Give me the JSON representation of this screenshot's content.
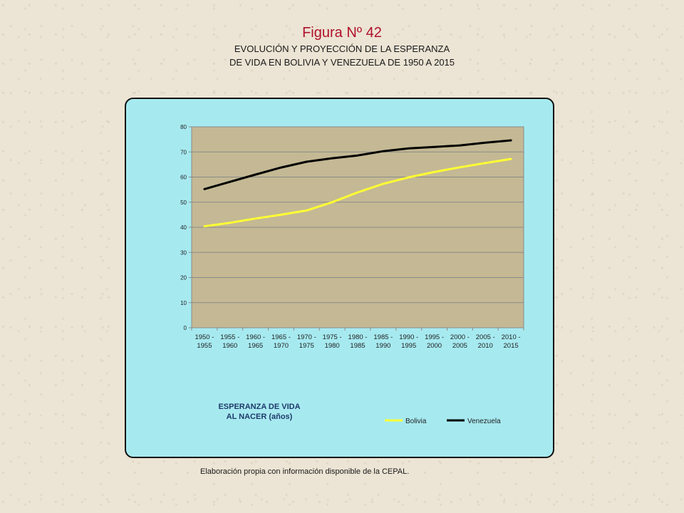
{
  "figure": {
    "title": "Figura Nº 42",
    "subtitle_line1": "EVOLUCIÓN Y PROYECCIÓN DE LA ESPERANZA",
    "subtitle_line2": "DE VIDA EN BOLIVIA Y VENEZUELA DE 1950 A 2015"
  },
  "caption": "Elaboración propia con información disponible de la CEPAL.",
  "colors": {
    "panel": "#a6eaf0",
    "plot": "#c4b994",
    "bolivia": "#ffff33",
    "venezuela": "#000000"
  },
  "chart_data": {
    "type": "line",
    "title": "",
    "xlabel": "",
    "ylabel": "",
    "ylabel_box_line1": "ESPERANZA DE VIDA",
    "ylabel_box_line2": "AL NACER (años)",
    "ylim": [
      0,
      80
    ],
    "yticks": [
      0,
      10,
      20,
      30,
      40,
      50,
      60,
      70,
      80
    ],
    "grid": true,
    "legend": "bottom-right",
    "categories": [
      [
        "1950 -",
        "1955"
      ],
      [
        "1955 -",
        "1960"
      ],
      [
        "1960 -",
        "1965"
      ],
      [
        "1965 -",
        "1970"
      ],
      [
        "1970 -",
        "1975"
      ],
      [
        "1975 -",
        "1980"
      ],
      [
        "1980 -",
        "1985"
      ],
      [
        "1985 -",
        "1990"
      ],
      [
        "1990 -",
        "1995"
      ],
      [
        "1995 -",
        "2000"
      ],
      [
        "2000 -",
        "2005"
      ],
      [
        "2005 -",
        "2010"
      ],
      [
        "2010 -",
        "2015"
      ]
    ],
    "series": [
      {
        "name": "Bolivia",
        "color": "#ffff33",
        "values": [
          40.4,
          41.8,
          43.5,
          45.0,
          46.7,
          50.0,
          53.9,
          57.3,
          59.9,
          62.0,
          63.9,
          65.6,
          67.2
        ]
      },
      {
        "name": "Venezuela",
        "color": "#000000",
        "values": [
          55.2,
          58.1,
          61.0,
          63.8,
          66.1,
          67.5,
          68.6,
          70.3,
          71.4,
          72.0,
          72.6,
          73.7,
          74.6
        ]
      }
    ]
  }
}
